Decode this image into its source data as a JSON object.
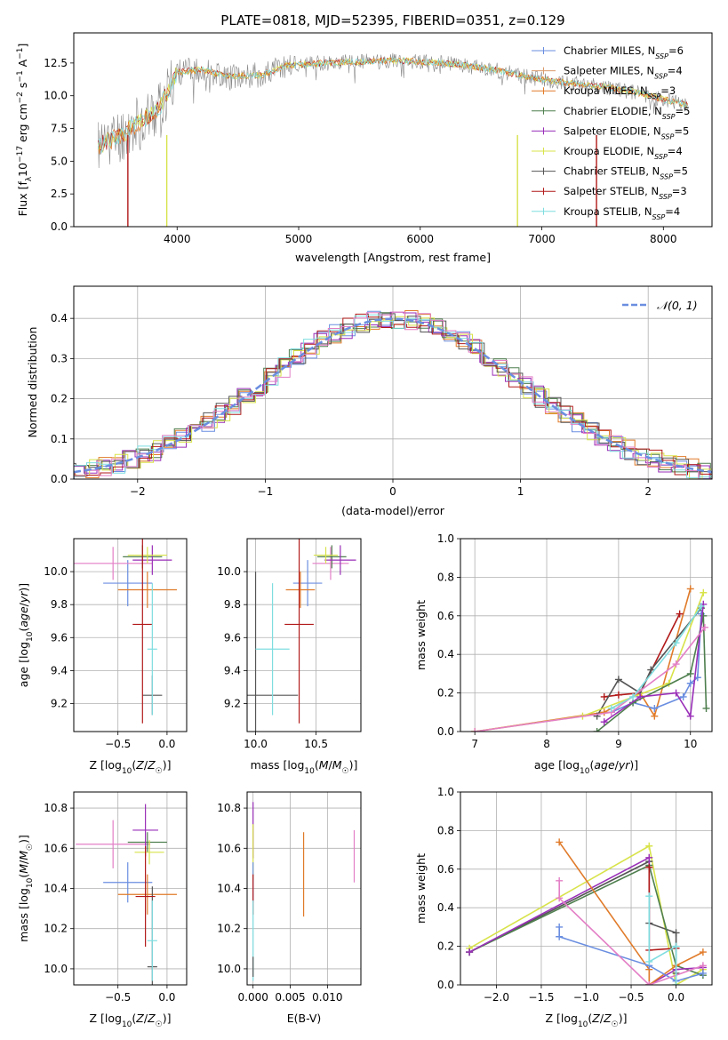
{
  "title": "PLATE=0818, MJD=52395, FIBERID=0351, z=0.129",
  "colors": {
    "chabrier_miles": "#6a8ee0",
    "salpeter_miles": "#d99a6c",
    "kroupa_miles": "#e07b2a",
    "chabrier_elodie": "#4f7f4f",
    "salpeter_elodie": "#9a2fb8",
    "kroupa_elodie": "#d8e34a",
    "chabrier_stelib": "#555555",
    "salpeter_stelib": "#b21a1a",
    "kroupa_stelib": "#7fdde0",
    "gauss": "#6a8ee0",
    "pink": "#e37fc6",
    "grid": "#b0b0b0"
  },
  "chart_data": [
    {
      "type": "line",
      "id": "spectrum",
      "xlabel": "wavelength [Angstrom, rest frame]",
      "ylabel": "Flux [f_λ 10^-17 erg cm^-2 s^-1 A^-1]",
      "xlim": [
        3150,
        8400
      ],
      "ylim": [
        0,
        14.8
      ],
      "xticks": [
        4000,
        5000,
        6000,
        7000,
        8000
      ],
      "yticks": [
        0.0,
        2.5,
        5.0,
        7.5,
        10.0,
        12.5
      ],
      "ytick_labels": [
        "0.0",
        "2.5",
        "5.0",
        "7.5",
        "10.0",
        "12.5"
      ],
      "legend_position": "upper-right",
      "legend": [
        {
          "label": "Chabrier MILES, N",
          "sub": "SSP",
          "suffix": "=6",
          "color": "#6a8ee0"
        },
        {
          "label": "Salpeter MILES, N",
          "sub": "SSP",
          "suffix": "=4",
          "color": "#d99a6c"
        },
        {
          "label": "Kroupa MILES, N",
          "sub": "SSP",
          "suffix": "=3",
          "color": "#e07b2a"
        },
        {
          "label": "Chabrier ELODIE, N",
          "sub": "SSP",
          "suffix": "=5",
          "color": "#4f7f4f"
        },
        {
          "label": "Salpeter ELODIE, N",
          "sub": "SSP",
          "suffix": "=5",
          "color": "#9a2fb8"
        },
        {
          "label": "Kroupa ELODIE, N",
          "sub": "SSP",
          "suffix": "=4",
          "color": "#d8e34a"
        },
        {
          "label": "Chabrier STELIB, N",
          "sub": "SSP",
          "suffix": "=5",
          "color": "#555555"
        },
        {
          "label": "Salpeter STELIB, N",
          "sub": "SSP",
          "suffix": "=3",
          "color": "#b21a1a"
        },
        {
          "label": "Kroupa STELIB, N",
          "sub": "SSP",
          "suffix": "=4",
          "color": "#7fdde0"
        }
      ],
      "continuum": [
        [
          3350,
          6.2
        ],
        [
          3500,
          6.8
        ],
        [
          3700,
          8.0
        ],
        [
          3850,
          9.0
        ],
        [
          3950,
          10.8
        ],
        [
          4000,
          11.8
        ],
        [
          4200,
          12.0
        ],
        [
          4400,
          11.5
        ],
        [
          4700,
          11.6
        ],
        [
          4900,
          12.3
        ],
        [
          5200,
          12.5
        ],
        [
          5500,
          12.6
        ],
        [
          5800,
          12.7
        ],
        [
          6000,
          12.6
        ],
        [
          6300,
          12.4
        ],
        [
          6600,
          12.0
        ],
        [
          6900,
          11.4
        ],
        [
          7200,
          11.0
        ],
        [
          7500,
          10.7
        ],
        [
          7800,
          10.2
        ],
        [
          8100,
          9.5
        ],
        [
          8200,
          9.3
        ]
      ]
    },
    {
      "type": "histogram",
      "id": "residuals",
      "xlabel": "(data-model)/error",
      "ylabel": "Normed distribution",
      "xlim": [
        -2.5,
        2.5
      ],
      "ylim": [
        0,
        0.48
      ],
      "xticks": [
        -2,
        -1,
        0,
        1,
        2
      ],
      "xtick_labels": [
        "−2",
        "−1",
        "0",
        "1",
        "2"
      ],
      "yticks": [
        0.0,
        0.1,
        0.2,
        0.3,
        0.4
      ],
      "ytick_labels": [
        "0.0",
        "0.1",
        "0.2",
        "0.3",
        "0.4"
      ],
      "legend": [
        {
          "label": "𝒩(0, 1)",
          "style": "dashed",
          "color": "#6a8ee0"
        }
      ],
      "legend_position": "upper-right",
      "bin_width": 0.1,
      "series": [
        {
          "name": "Chabrier MILES",
          "color": "#6a8ee0",
          "seed": 1
        },
        {
          "name": "Kroupa MILES",
          "color": "#e07b2a",
          "seed": 2
        },
        {
          "name": "Chabrier ELODIE",
          "color": "#4f7f4f",
          "seed": 3
        },
        {
          "name": "Salpeter ELODIE",
          "color": "#9a2fb8",
          "seed": 4
        },
        {
          "name": "Kroupa ELODIE",
          "color": "#d8e34a",
          "seed": 5
        },
        {
          "name": "Chabrier STELIB",
          "color": "#555555",
          "seed": 6
        },
        {
          "name": "Salpeter STELIB",
          "color": "#b21a1a",
          "seed": 7
        },
        {
          "name": "Kroupa STELIB",
          "color": "#7fdde0",
          "seed": 8
        },
        {
          "name": "Salpeter MILES",
          "color": "#e37fc6",
          "seed": 9
        }
      ]
    },
    {
      "type": "errorbar",
      "id": "age_vs_Z",
      "xlabel": "Z [log10(Z/Z☉)]",
      "ylabel": "age [log10(age/yr)]",
      "xlim": [
        -0.95,
        0.2
      ],
      "ylim": [
        9.03,
        10.2
      ],
      "xticks": [
        -0.5,
        0.0
      ],
      "xtick_labels": [
        "−0.5",
        "0.0"
      ],
      "yticks": [
        9.2,
        9.4,
        9.6,
        9.8,
        10.0
      ],
      "ytick_labels": [
        "9.2",
        "9.4",
        "9.6",
        "9.8",
        "10.0"
      ],
      "points": [
        {
          "x": -0.4,
          "y": 9.93,
          "xerr": 0.25,
          "yerr": 0.14,
          "color": "#6a8ee0"
        },
        {
          "x": -0.55,
          "y": 10.05,
          "xerr": 0.4,
          "yerr": 0.1,
          "color": "#e37fc6"
        },
        {
          "x": -0.2,
          "y": 9.89,
          "xerr": 0.3,
          "yerr": 0.11,
          "color": "#e07b2a"
        },
        {
          "x": -0.25,
          "y": 10.09,
          "xerr": 0.2,
          "yerr": 0.07,
          "color": "#4f7f4f"
        },
        {
          "x": -0.15,
          "y": 10.07,
          "xerr": 0.2,
          "yerr": 0.09,
          "color": "#9a2fb8"
        },
        {
          "x": -0.2,
          "y": 10.1,
          "xerr": 0.2,
          "yerr": 0.05,
          "color": "#d8e34a"
        },
        {
          "x": -0.15,
          "y": 9.25,
          "xerr": 0.1,
          "yerr": 0.12,
          "color": "#555555"
        },
        {
          "x": -0.25,
          "y": 9.68,
          "xerr": 0.1,
          "yerr": 0.6,
          "color": "#b21a1a"
        },
        {
          "x": -0.15,
          "y": 9.53,
          "xerr": 0.05,
          "yerr": 0.4,
          "color": "#7fdde0"
        }
      ]
    },
    {
      "type": "errorbar",
      "id": "age_vs_mass",
      "xlabel": "mass [log10(M/M☉)]",
      "ylabel": "",
      "xlim": [
        9.93,
        10.87
      ],
      "ylim": [
        9.03,
        10.2
      ],
      "xticks": [
        10.0,
        10.5
      ],
      "xtick_labels": [
        "10.0",
        "10.5"
      ],
      "yticks": [
        9.2,
        9.4,
        9.6,
        9.8,
        10.0
      ],
      "ytick_labels": [
        "9.2",
        "9.4",
        "9.6",
        "9.8",
        "10.0"
      ],
      "points": [
        {
          "x": 10.43,
          "y": 9.93,
          "xerr": 0.12,
          "yerr": 0.14,
          "color": "#6a8ee0"
        },
        {
          "x": 10.62,
          "y": 10.05,
          "xerr": 0.15,
          "yerr": 0.1,
          "color": "#e37fc6"
        },
        {
          "x": 10.37,
          "y": 9.89,
          "xerr": 0.12,
          "yerr": 0.11,
          "color": "#e07b2a"
        },
        {
          "x": 10.63,
          "y": 10.09,
          "xerr": 0.12,
          "yerr": 0.07,
          "color": "#4f7f4f"
        },
        {
          "x": 10.7,
          "y": 10.07,
          "xerr": 0.13,
          "yerr": 0.09,
          "color": "#9a2fb8"
        },
        {
          "x": 10.58,
          "y": 10.1,
          "xerr": 0.1,
          "yerr": 0.05,
          "color": "#d8e34a"
        },
        {
          "x": 10.0,
          "y": 9.25,
          "xerr": 0.0,
          "yerr": 0.75,
          "color": "#555555"
        },
        {
          "x": 10.13,
          "y": 9.25,
          "xerr": 0.22,
          "yerr": 0.0,
          "color": "#555555"
        },
        {
          "x": 10.36,
          "y": 9.68,
          "xerr": 0.12,
          "yerr": 0.6,
          "color": "#b21a1a"
        },
        {
          "x": 10.14,
          "y": 9.53,
          "xerr": 0.14,
          "yerr": 0.4,
          "color": "#7fdde0"
        }
      ]
    },
    {
      "type": "line",
      "id": "massweight_vs_age",
      "xlabel": "age [log10(age/yr)]",
      "ylabel": "mass weight",
      "xlim": [
        6.8,
        10.3
      ],
      "ylim": [
        0,
        1.0
      ],
      "xticks": [
        7,
        8,
        9,
        10
      ],
      "xtick_labels": [
        "7",
        "8",
        "9",
        "10"
      ],
      "yticks": [
        0.0,
        0.2,
        0.4,
        0.6,
        0.8,
        1.0
      ],
      "ytick_labels": [
        "0.0",
        "0.2",
        "0.4",
        "0.6",
        "0.8",
        "1.0"
      ],
      "series": [
        {
          "color": "#e07b2a",
          "x": [
            7.0,
            8.8,
            9.3,
            9.5,
            10.0
          ],
          "y": [
            0.0,
            0.1,
            0.2,
            0.08,
            0.74
          ]
        },
        {
          "color": "#b21a1a",
          "x": [
            8.8,
            9.0,
            9.3,
            9.85
          ],
          "y": [
            0.18,
            0.19,
            0.2,
            0.61
          ]
        },
        {
          "color": "#555555",
          "x": [
            8.7,
            9.0,
            9.3,
            9.45,
            10.15
          ],
          "y": [
            0.08,
            0.27,
            0.2,
            0.32,
            0.64
          ]
        },
        {
          "color": "#6a8ee0",
          "x": [
            8.9,
            9.2,
            9.5,
            9.9,
            10.0,
            10.1,
            10.15
          ],
          "y": [
            0.1,
            0.15,
            0.12,
            0.18,
            0.25,
            0.28,
            0.61
          ]
        },
        {
          "color": "#d8e34a",
          "x": [
            7.0,
            8.5,
            9.7,
            10.18
          ],
          "y": [
            0.0,
            0.08,
            0.25,
            0.72
          ]
        },
        {
          "color": "#4f7f4f",
          "x": [
            8.7,
            9.2,
            10.0,
            10.18,
            10.22
          ],
          "y": [
            0.0,
            0.15,
            0.3,
            0.6,
            0.12
          ]
        },
        {
          "color": "#9a2fb8",
          "x": [
            8.8,
            9.3,
            9.8,
            10.0,
            10.18
          ],
          "y": [
            0.05,
            0.18,
            0.2,
            0.08,
            0.66
          ]
        },
        {
          "color": "#e37fc6",
          "x": [
            7.0,
            8.9,
            9.8,
            10.2
          ],
          "y": [
            0.0,
            0.1,
            0.35,
            0.54
          ]
        },
        {
          "color": "#7fdde0",
          "x": [
            8.9,
            9.2,
            9.8,
            10.15
          ],
          "y": [
            0.12,
            0.18,
            0.46,
            0.65
          ]
        }
      ]
    },
    {
      "type": "errorbar",
      "id": "mass_vs_Z",
      "xlabel": "Z [log10(Z/Z☉)]",
      "ylabel": "mass [log10(M/M☉)]",
      "xlim": [
        -0.95,
        0.2
      ],
      "ylim": [
        9.92,
        10.88
      ],
      "xticks": [
        -0.5,
        0.0
      ],
      "xtick_labels": [
        "−0.5",
        "0.0"
      ],
      "yticks": [
        10.0,
        10.2,
        10.4,
        10.6,
        10.8
      ],
      "ytick_labels": [
        "10.0",
        "10.2",
        "10.4",
        "10.6",
        "10.8"
      ],
      "points": [
        {
          "x": -0.4,
          "y": 10.43,
          "xerr": 0.25,
          "yerr": 0.1,
          "color": "#6a8ee0"
        },
        {
          "x": -0.55,
          "y": 10.62,
          "xerr": 0.38,
          "yerr": 0.12,
          "color": "#e37fc6"
        },
        {
          "x": -0.2,
          "y": 10.37,
          "xerr": 0.3,
          "yerr": 0.1,
          "color": "#e07b2a"
        },
        {
          "x": -0.2,
          "y": 10.63,
          "xerr": 0.2,
          "yerr": 0.05,
          "color": "#4f7f4f"
        },
        {
          "x": -0.22,
          "y": 10.69,
          "xerr": 0.13,
          "yerr": 0.13,
          "color": "#9a2fb8"
        },
        {
          "x": -0.18,
          "y": 10.58,
          "xerr": 0.15,
          "yerr": 0.06,
          "color": "#d8e34a"
        },
        {
          "x": -0.15,
          "y": 10.01,
          "xerr": 0.05,
          "yerr": 0.4,
          "color": "#555555"
        },
        {
          "x": -0.22,
          "y": 10.36,
          "xerr": 0.1,
          "yerr": 0.25,
          "color": "#b21a1a"
        },
        {
          "x": -0.15,
          "y": 10.14,
          "xerr": 0.05,
          "yerr": 0.2,
          "color": "#7fdde0"
        }
      ]
    },
    {
      "type": "errorbar",
      "id": "mass_vs_EBV",
      "xlabel": "E(B-V)",
      "ylabel": "",
      "xlim": [
        -0.0008,
        0.0145
      ],
      "ylim": [
        9.92,
        10.88
      ],
      "xticks": [
        0.0,
        0.005,
        0.01
      ],
      "xtick_labels": [
        "0.000",
        "0.005",
        "0.010"
      ],
      "yticks": [
        10.0,
        10.2,
        10.4,
        10.6,
        10.8
      ],
      "ytick_labels": [
        "10.0",
        "10.2",
        "10.4",
        "10.6",
        "10.8"
      ],
      "points": [
        {
          "x": 0.0,
          "y": 10.69,
          "xerr": 0,
          "yerr": 0.14,
          "color": "#9a2fb8"
        },
        {
          "x": 0.0,
          "y": 10.58,
          "xerr": 0,
          "yerr": 0.14,
          "color": "#d8e34a"
        },
        {
          "x": 0.0,
          "y": 10.43,
          "xerr": 0,
          "yerr": 0.1,
          "color": "#6a8ee0"
        },
        {
          "x": 0.0,
          "y": 10.37,
          "xerr": 0,
          "yerr": 0.1,
          "color": "#b21a1a"
        },
        {
          "x": 0.0,
          "y": 10.14,
          "xerr": 0,
          "yerr": 0.2,
          "color": "#7fdde0"
        },
        {
          "x": 0.0,
          "y": 10.01,
          "xerr": 0,
          "yerr": 0.05,
          "color": "#555555"
        },
        {
          "x": 0.0068,
          "y": 10.47,
          "xerr": 0,
          "yerr": 0.21,
          "color": "#e07b2a"
        },
        {
          "x": 0.0136,
          "y": 10.56,
          "xerr": 0,
          "yerr": 0.13,
          "color": "#e37fc6"
        }
      ]
    },
    {
      "type": "line",
      "id": "massweight_vs_Z",
      "xlabel": "Z [log10(Z/Z☉)]",
      "ylabel": "mass weight",
      "xlim": [
        -2.4,
        0.4
      ],
      "ylim": [
        0,
        1.0
      ],
      "xticks": [
        -2.0,
        -1.5,
        -1.0,
        -0.5,
        0.0
      ],
      "xtick_labels": [
        "−2.0",
        "−1.5",
        "−1.0",
        "−0.5",
        "0.0"
      ],
      "yticks": [
        0.0,
        0.2,
        0.4,
        0.6,
        0.8,
        1.0
      ],
      "ytick_labels": [
        "0.0",
        "0.2",
        "0.4",
        "0.6",
        "0.8",
        "1.0"
      ],
      "series": [
        {
          "color": "#d8e34a",
          "x": [
            -2.3,
            -0.3,
            0.0,
            0.3
          ],
          "y": [
            0.19,
            0.72,
            0.0,
            0.08
          ]
        },
        {
          "color": "#555555",
          "x": [
            -2.3,
            -0.3,
            -0.3,
            0.0,
            0.0
          ],
          "y": [
            0.17,
            0.64,
            0.32,
            0.27,
            0.06
          ]
        },
        {
          "color": "#4f7f4f",
          "x": [
            -2.3,
            -0.3,
            0.0,
            0.3
          ],
          "y": [
            0.17,
            0.62,
            0.1,
            0.05
          ]
        },
        {
          "color": "#9a2fb8",
          "x": [
            -2.3,
            -0.3,
            -0.3,
            0.0,
            0.3
          ],
          "y": [
            0.17,
            0.66,
            0.0,
            0.08,
            0.09
          ]
        },
        {
          "color": "#e07b2a",
          "x": [
            -1.3,
            -0.3,
            -0.3,
            0.0,
            0.3
          ],
          "y": [
            0.74,
            0.08,
            0.0,
            0.1,
            0.17
          ]
        },
        {
          "color": "#b21a1a",
          "x": [
            -0.3,
            -0.3,
            0.0
          ],
          "y": [
            0.61,
            0.18,
            0.19
          ]
        },
        {
          "color": "#6a8ee0",
          "x": [
            -1.3,
            -1.3,
            -0.3,
            0.0,
            0.3
          ],
          "y": [
            0.3,
            0.25,
            0.1,
            0.02,
            0.06
          ]
        },
        {
          "color": "#e37fc6",
          "x": [
            -1.3,
            -1.3,
            -0.3,
            0.3
          ],
          "y": [
            0.54,
            0.45,
            0.0,
            0.1
          ]
        },
        {
          "color": "#7fdde0",
          "x": [
            -0.3,
            -0.3,
            0.0,
            0.0
          ],
          "y": [
            0.46,
            0.12,
            0.2,
            0.0
          ]
        }
      ]
    }
  ]
}
